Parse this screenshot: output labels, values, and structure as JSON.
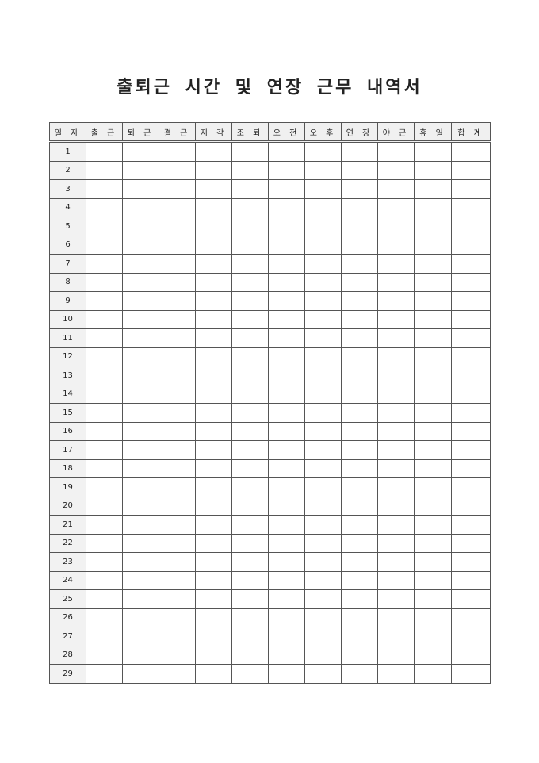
{
  "title": "출퇴근 시간 및 연장 근무 내역서",
  "table": {
    "headers": [
      "일 자",
      "출 근",
      "퇴 근",
      "결 근",
      "지 각",
      "조 퇴",
      "오 전",
      "오 후",
      "연 장",
      "야 근",
      "휴 일",
      "합 계"
    ],
    "days": [
      "1",
      "2",
      "3",
      "4",
      "5",
      "6",
      "7",
      "8",
      "9",
      "10",
      "11",
      "12",
      "13",
      "14",
      "15",
      "16",
      "17",
      "18",
      "19",
      "20",
      "21",
      "22",
      "23",
      "24",
      "25",
      "26",
      "27",
      "28",
      "29"
    ]
  }
}
